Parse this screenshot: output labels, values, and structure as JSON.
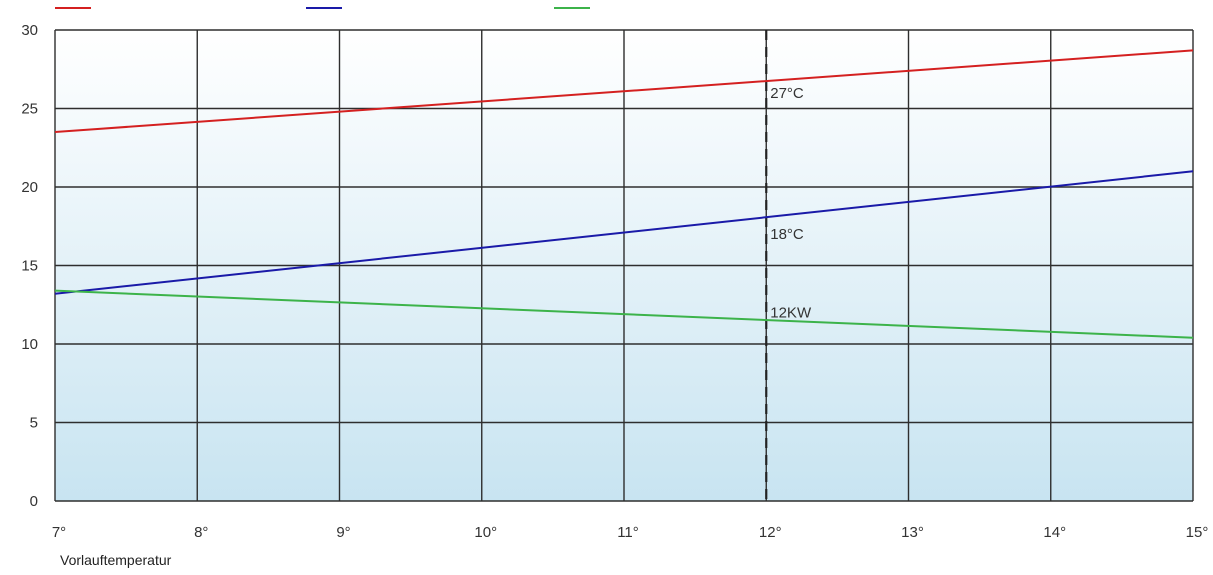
{
  "chart_data": {
    "type": "line",
    "xlabel": "Vorlauftemperatur",
    "ylabel": "",
    "xlim": [
      7,
      15
    ],
    "ylim": [
      0,
      30
    ],
    "x_ticks": [
      7,
      8,
      9,
      10,
      11,
      12,
      13,
      14,
      15
    ],
    "x_tick_labels": [
      "7°",
      "8°",
      "9°",
      "10°",
      "11°",
      "12°",
      "13°",
      "14°",
      "15°"
    ],
    "y_ticks": [
      0,
      5,
      10,
      15,
      20,
      25,
      30
    ],
    "y_tick_labels": [
      "0",
      "5",
      "10",
      "15",
      "20",
      "25",
      "30"
    ],
    "grid": true,
    "series": [
      {
        "color": "#d42020",
        "x": [
          7,
          15
        ],
        "y": [
          23.5,
          28.7
        ]
      },
      {
        "color": "#1a1aa8",
        "x": [
          7,
          15
        ],
        "y": [
          13.2,
          21.0
        ]
      },
      {
        "color": "#3cb34a",
        "x": [
          7,
          15
        ],
        "y": [
          13.4,
          10.4
        ]
      }
    ],
    "legend_colors": [
      "#d42020",
      "#1a1aa8",
      "#3cb34a"
    ],
    "reference_line": {
      "x": 12,
      "style": "dashed",
      "color": "#222222"
    },
    "annotations": [
      {
        "text": "27°C",
        "x": 12,
        "y": 26.0
      },
      {
        "text": "18°C",
        "x": 12,
        "y": 17.0
      },
      {
        "text": "12KW",
        "x": 12,
        "y": 12.0
      }
    ],
    "background_gradient": [
      "#ffffff",
      "#c8e4f1"
    ]
  }
}
